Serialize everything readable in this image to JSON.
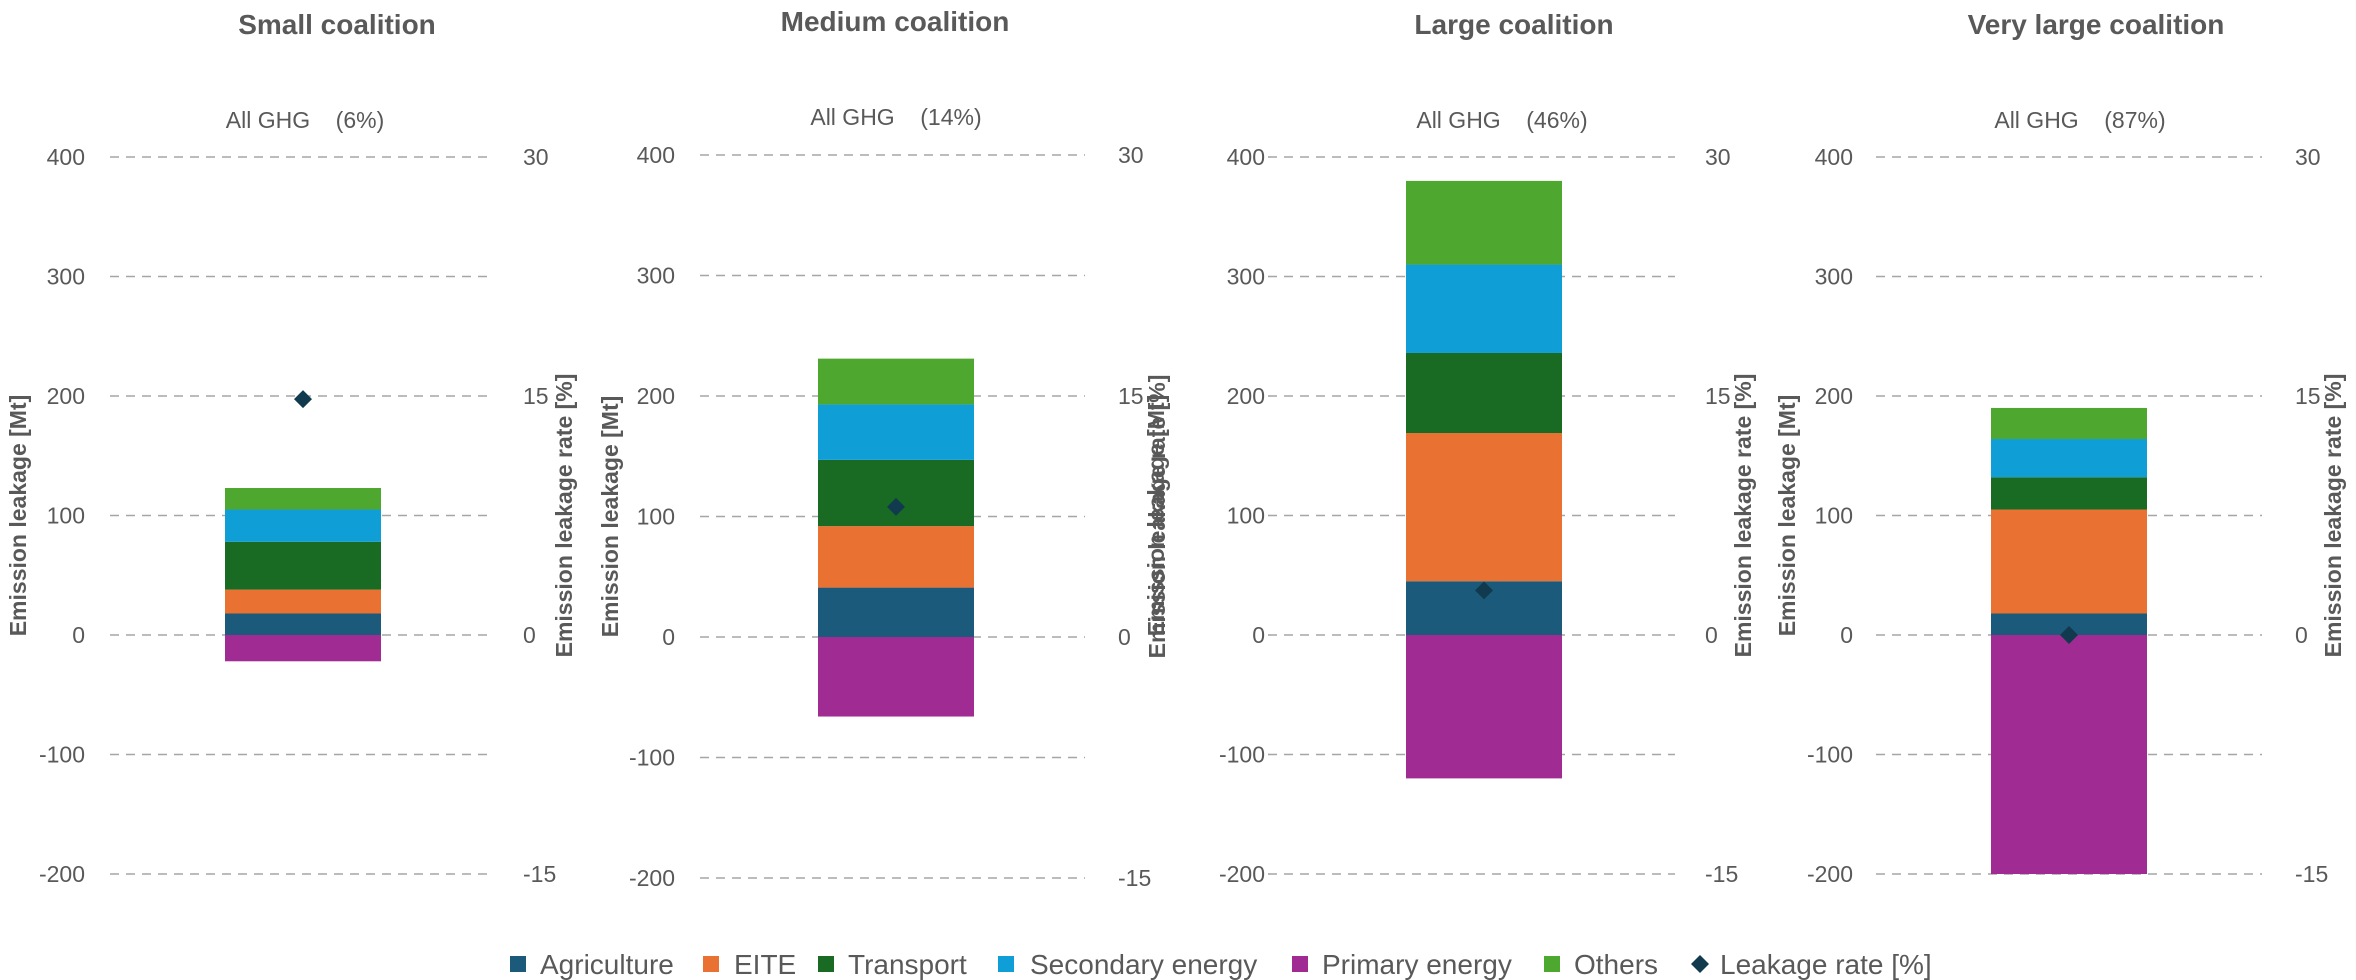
{
  "colors": {
    "Agriculture": "#1b5a7a",
    "EITE": "#e97132",
    "Transport": "#196b24",
    "Secondary energy": "#0f9ed5",
    "Primary energy": "#a02b93",
    "Others": "#4ea72e",
    "Leakage rate [%]": "#123a4f"
  },
  "legend": {
    "items": [
      {
        "label": "Agriculture",
        "marker": "square"
      },
      {
        "label": "EITE",
        "marker": "square"
      },
      {
        "label": "Transport",
        "marker": "square"
      },
      {
        "label": "Secondary energy",
        "marker": "square"
      },
      {
        "label": "Primary energy",
        "marker": "square"
      },
      {
        "label": "Others",
        "marker": "square"
      },
      {
        "label": "Leakage rate [%]",
        "marker": "diamond"
      }
    ]
  },
  "chart_data": [
    {
      "type": "bar",
      "stacked": true,
      "title": "Small coalition",
      "subtitle": "All GHG    (6%)",
      "ylabel": "Emission leakage [Mt]",
      "y2label": "Emission leakage rate [%]",
      "ylim": [
        -200,
        400
      ],
      "y2lim": [
        -15,
        30
      ],
      "yticks": [
        "400",
        "300",
        "200",
        "100",
        "0",
        "-100",
        "-200"
      ],
      "y2ticks": [
        "30",
        "15",
        "0",
        "-15"
      ],
      "grid": true,
      "legend": "bottom",
      "series": [
        {
          "name": "Agriculture",
          "value": 18
        },
        {
          "name": "EITE",
          "value": 20
        },
        {
          "name": "Transport",
          "value": 40
        },
        {
          "name": "Secondary energy",
          "value": 27
        },
        {
          "name": "Primary energy",
          "value": -22
        },
        {
          "name": "Others",
          "value": 18
        }
      ],
      "leakage_rate": 14.8
    },
    {
      "type": "bar",
      "stacked": true,
      "title": "Medium coalition",
      "subtitle": "All GHG    (14%)",
      "ylabel": "Emission leakage [Mt]",
      "y2label": "Emission leakage rate [%]",
      "ylim": [
        -200,
        400
      ],
      "y2lim": [
        -15,
        30
      ],
      "yticks": [
        "400",
        "300",
        "200",
        "100",
        "0",
        "-100",
        "-200"
      ],
      "y2ticks": [
        "30",
        "15",
        "0",
        "-15"
      ],
      "grid": true,
      "legend": "bottom",
      "series": [
        {
          "name": "Agriculture",
          "value": 41
        },
        {
          "name": "EITE",
          "value": 51
        },
        {
          "name": "Transport",
          "value": 55
        },
        {
          "name": "Secondary energy",
          "value": 46
        },
        {
          "name": "Primary energy",
          "value": -66
        },
        {
          "name": "Others",
          "value": 38
        }
      ],
      "leakage_rate": 8.1
    },
    {
      "type": "bar",
      "stacked": true,
      "title": "Large coalition",
      "subtitle": "All GHG    (46%)",
      "ylabel": "Emission leakage [Mt]",
      "y2label": "Emission leakage rate [%]",
      "ylim": [
        -200,
        400
      ],
      "y2lim": [
        -15,
        30
      ],
      "yticks": [
        "400",
        "300",
        "200",
        "100",
        "0",
        "-100",
        "-200"
      ],
      "y2ticks": [
        "30",
        "15",
        "0",
        "-15"
      ],
      "grid": true,
      "legend": "bottom",
      "series": [
        {
          "name": "Agriculture",
          "value": 45
        },
        {
          "name": "EITE",
          "value": 124
        },
        {
          "name": "Transport",
          "value": 67
        },
        {
          "name": "Secondary energy",
          "value": 74
        },
        {
          "name": "Primary energy",
          "value": -120
        },
        {
          "name": "Others",
          "value": 70
        }
      ],
      "leakage_rate": 2.8
    },
    {
      "type": "bar",
      "stacked": true,
      "title": "Very large coalition",
      "subtitle": "All GHG    (87%)",
      "ylabel": "Emission leakage [Mt]",
      "y2label": "Emission leakage rate [%]",
      "ylim": [
        -200,
        400
      ],
      "y2lim": [
        -15,
        30
      ],
      "yticks": [
        "400",
        "300",
        "200",
        "100",
        "0",
        "-100",
        "-200"
      ],
      "y2ticks": [
        "30",
        "15",
        "0",
        "-15"
      ],
      "grid": true,
      "legend": "bottom",
      "series": [
        {
          "name": "Agriculture",
          "value": 18
        },
        {
          "name": "EITE",
          "value": 87
        },
        {
          "name": "Transport",
          "value": 27
        },
        {
          "name": "Secondary energy",
          "value": 32
        },
        {
          "name": "Primary energy",
          "value": -200
        },
        {
          "name": "Others",
          "value": 26
        }
      ],
      "leakage_rate": 0
    }
  ]
}
